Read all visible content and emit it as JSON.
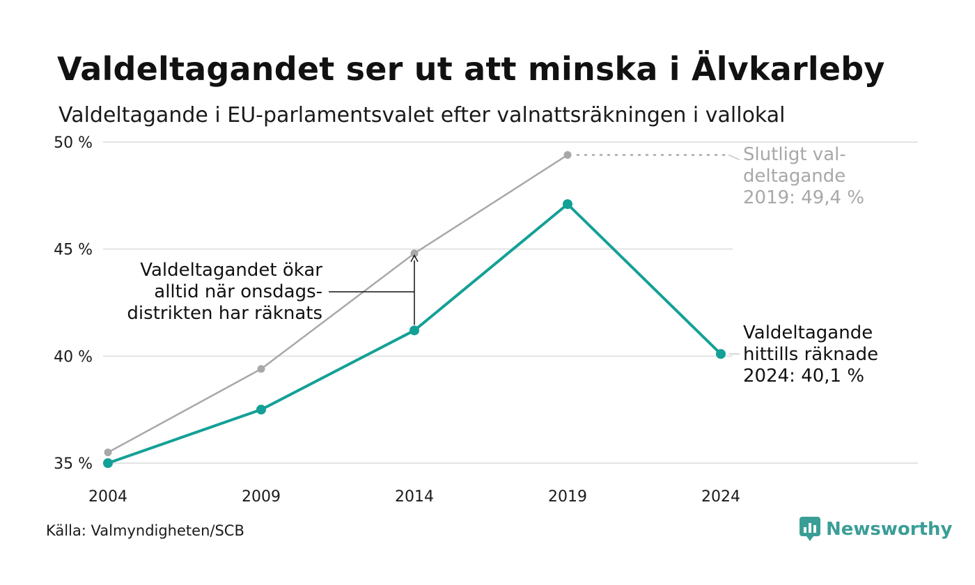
{
  "title": "Valdeltagandet ser ut att minska i Älvkarleby",
  "subtitle": "Valdeltagande i EU-parlamentsvalet efter valnattsräkningen i vallokal",
  "source": "Källa: Valmyndigheten/SCB",
  "brand": {
    "name": "Newsworthy",
    "icon": "newsworthy-logo-icon",
    "color": "#3a9e96"
  },
  "chart_data": {
    "type": "line",
    "x": [
      "2004",
      "2009",
      "2014",
      "2019",
      "2024"
    ],
    "ylim": [
      35,
      50
    ],
    "yticks": [
      35,
      40,
      45,
      50
    ],
    "ytick_labels": [
      "35 %",
      "40 %",
      "45 %",
      "50 %"
    ],
    "grid": true,
    "series": [
      {
        "name": "",
        "color": "#a8a8a8",
        "values": [
          35.5,
          39.4,
          44.8,
          49.4,
          null
        ]
      },
      {
        "name": "",
        "color": "#13a096",
        "values": [
          35.0,
          37.5,
          41.2,
          47.1,
          40.1
        ]
      }
    ],
    "annotations": [
      {
        "id": "final",
        "lines": [
          "Slutligt val-",
          "deltagande",
          "2019: 49,4 %"
        ],
        "color": "#a8a8a8"
      },
      {
        "id": "counted",
        "lines": [
          "Valdeltagande",
          "hittills räknade",
          "2024: 40,1 %"
        ],
        "color": "#111111"
      },
      {
        "id": "increase",
        "lines": [
          "Valdeltagandet ökar",
          "alltid när onsdags-",
          "distrikten har räknats"
        ],
        "color": "#111111"
      }
    ]
  }
}
